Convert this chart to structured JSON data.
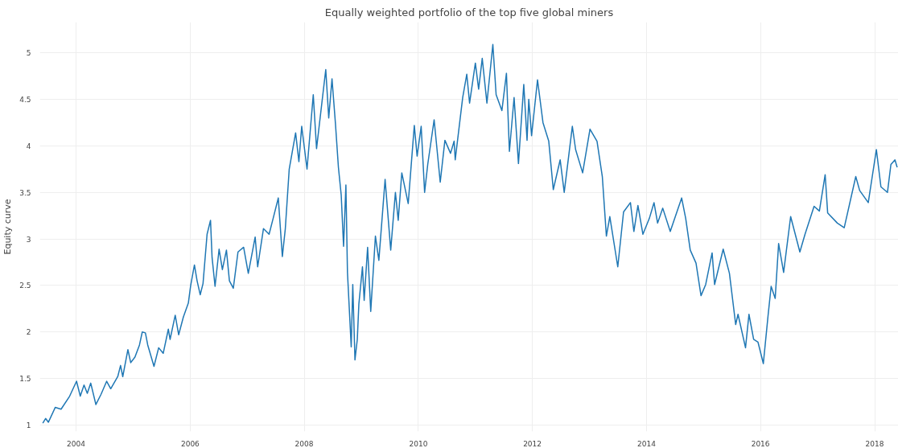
{
  "chart_data": {
    "type": "line",
    "title": "Equally weighted portfolio of the top five global miners",
    "ylabel": "Equity curve",
    "x": [
      "2003-06-02",
      "2003-06-20",
      "2003-07-08",
      "2003-08-21",
      "2003-09-27",
      "2003-11-21",
      "2004-01-04",
      "2004-01-28",
      "2004-02-21",
      "2004-03-13",
      "2004-04-04",
      "2004-05-07",
      "2004-06-09",
      "2004-07-15",
      "2004-08-10",
      "2004-09-24",
      "2004-10-12",
      "2004-10-26",
      "2004-11-28",
      "2004-12-16",
      "2005-01-12",
      "2005-02-10",
      "2005-02-28",
      "2005-03-20",
      "2005-04-04",
      "2005-05-14",
      "2005-06-13",
      "2005-07-12",
      "2005-08-14",
      "2005-08-25",
      "2005-09-27",
      "2005-10-19",
      "2005-11-18",
      "2005-12-20",
      "2006-01-04",
      "2006-01-28",
      "2006-02-14",
      "2006-03-06",
      "2006-03-24",
      "2006-04-19",
      "2006-05-11",
      "2006-05-21",
      "2006-06-09",
      "2006-07-05",
      "2006-07-26",
      "2006-08-21",
      "2006-09-09",
      "2006-10-04",
      "2006-11-03",
      "2006-12-09",
      "2007-01-08",
      "2007-02-21",
      "2007-03-09",
      "2007-04-15",
      "2007-05-21",
      "2007-06-16",
      "2007-07-19",
      "2007-08-14",
      "2007-09-02",
      "2007-09-27",
      "2007-11-07",
      "2007-11-28",
      "2007-12-16",
      "2008-01-19",
      "2008-02-28",
      "2008-03-20",
      "2008-04-23",
      "2008-05-18",
      "2008-06-06",
      "2008-06-27",
      "2008-07-19",
      "2008-08-07",
      "2008-08-25",
      "2008-09-09",
      "2008-09-24",
      "2008-10-04",
      "2008-10-28",
      "2008-11-07",
      "2008-11-21",
      "2008-12-06",
      "2008-12-16",
      "2009-01-08",
      "2009-01-19",
      "2009-02-10",
      "2009-03-02",
      "2009-04-01",
      "2009-04-23",
      "2009-06-02",
      "2009-07-08",
      "2009-08-07",
      "2009-08-25",
      "2009-09-17",
      "2009-10-28",
      "2009-12-06",
      "2009-12-24",
      "2010-01-19",
      "2010-02-10",
      "2010-03-02",
      "2010-04-12",
      "2010-05-21",
      "2010-06-20",
      "2010-07-26",
      "2010-08-18",
      "2010-08-25",
      "2010-09-24",
      "2010-10-12",
      "2010-11-07",
      "2010-11-25",
      "2011-01-01",
      "2011-01-22",
      "2011-02-14",
      "2011-03-16",
      "2011-04-23",
      "2011-05-14",
      "2011-06-20",
      "2011-07-19",
      "2011-08-07",
      "2011-09-06",
      "2011-10-04",
      "2011-11-07",
      "2011-11-28",
      "2011-12-09",
      "2011-12-27",
      "2012-02-03",
      "2012-03-09",
      "2012-04-15",
      "2012-05-14",
      "2012-06-27",
      "2012-07-23",
      "2012-09-13",
      "2012-10-04",
      "2012-11-18",
      "2013-01-04",
      "2013-02-18",
      "2013-03-24",
      "2013-04-19",
      "2013-05-11",
      "2013-07-01",
      "2013-08-07",
      "2013-09-20",
      "2013-10-12",
      "2013-11-07",
      "2013-12-09",
      "2014-01-19",
      "2014-02-18",
      "2014-03-13",
      "2014-04-15",
      "2014-06-02",
      "2014-08-14",
      "2014-09-09",
      "2014-10-08",
      "2014-11-14",
      "2014-12-16",
      "2015-01-15",
      "2015-02-25",
      "2015-03-13",
      "2015-05-07",
      "2015-06-16",
      "2015-07-26",
      "2015-08-10",
      "2015-09-27",
      "2015-10-19",
      "2015-11-18",
      "2015-12-16",
      "2016-01-19",
      "2016-02-18",
      "2016-03-09",
      "2016-04-04",
      "2016-04-26",
      "2016-05-28",
      "2016-07-12",
      "2016-09-09",
      "2016-10-12",
      "2016-12-09",
      "2017-01-12",
      "2017-02-18",
      "2017-03-06",
      "2017-05-07",
      "2017-06-20",
      "2017-09-02",
      "2017-09-27",
      "2017-11-21",
      "2018-01-12",
      "2018-02-10",
      "2018-03-24",
      "2018-04-15",
      "2018-05-11",
      "2018-05-25"
    ],
    "series": [
      {
        "color": "#1f77b4",
        "values": [
          1.02,
          1.07,
          1.03,
          1.19,
          1.17,
          1.31,
          1.47,
          1.31,
          1.43,
          1.34,
          1.45,
          1.22,
          1.33,
          1.47,
          1.39,
          1.52,
          1.64,
          1.52,
          1.81,
          1.67,
          1.73,
          1.86,
          2.0,
          1.99,
          1.86,
          1.63,
          1.83,
          1.77,
          2.03,
          1.92,
          2.18,
          1.97,
          2.16,
          2.31,
          2.5,
          2.72,
          2.55,
          2.4,
          2.52,
          3.05,
          3.2,
          2.8,
          2.49,
          2.89,
          2.67,
          2.88,
          2.55,
          2.47,
          2.86,
          2.91,
          2.63,
          3.02,
          2.7,
          3.11,
          3.05,
          3.22,
          3.44,
          2.81,
          3.11,
          3.75,
          4.14,
          3.83,
          4.21,
          3.75,
          4.55,
          3.97,
          4.46,
          4.82,
          4.3,
          4.72,
          4.24,
          3.77,
          3.47,
          2.92,
          3.58,
          2.64,
          1.84,
          2.51,
          1.7,
          1.92,
          2.3,
          2.7,
          2.34,
          2.91,
          2.22,
          3.03,
          2.77,
          3.64,
          2.88,
          3.5,
          3.2,
          3.71,
          3.38,
          4.22,
          3.89,
          4.21,
          3.5,
          3.8,
          4.28,
          3.61,
          4.06,
          3.92,
          4.05,
          3.85,
          4.27,
          4.52,
          4.77,
          4.46,
          4.89,
          4.61,
          4.94,
          4.46,
          5.09,
          4.55,
          4.38,
          4.78,
          3.94,
          4.52,
          3.81,
          4.66,
          4.06,
          4.5,
          4.11,
          4.71,
          4.25,
          4.05,
          3.53,
          3.85,
          3.5,
          4.21,
          3.96,
          3.71,
          4.18,
          4.05,
          3.67,
          3.03,
          3.24,
          2.7,
          3.29,
          3.39,
          3.08,
          3.36,
          3.05,
          3.22,
          3.39,
          3.17,
          3.33,
          3.08,
          3.44,
          3.22,
          2.88,
          2.74,
          2.39,
          2.51,
          2.85,
          2.51,
          2.89,
          2.63,
          2.08,
          2.19,
          1.83,
          2.19,
          1.92,
          1.89,
          1.66,
          2.17,
          2.49,
          2.36,
          2.95,
          2.64,
          3.24,
          2.86,
          3.05,
          3.35,
          3.3,
          3.69,
          3.28,
          3.17,
          3.12,
          3.67,
          3.52,
          3.39,
          3.96,
          3.56,
          3.5,
          3.8,
          3.85,
          3.77
        ]
      }
    ],
    "xlim": [
      "2003-05-14",
      "2018-06-02"
    ],
    "xticks": [
      "2004",
      "2006",
      "2008",
      "2010",
      "2012",
      "2014",
      "2016",
      "2018"
    ],
    "ylim": [
      0.93,
      5.33
    ],
    "yticks": [
      1,
      1.5,
      2,
      2.5,
      3,
      3.5,
      4,
      4.5,
      5
    ],
    "grid": true,
    "marker": "none",
    "line_style": "solid"
  }
}
